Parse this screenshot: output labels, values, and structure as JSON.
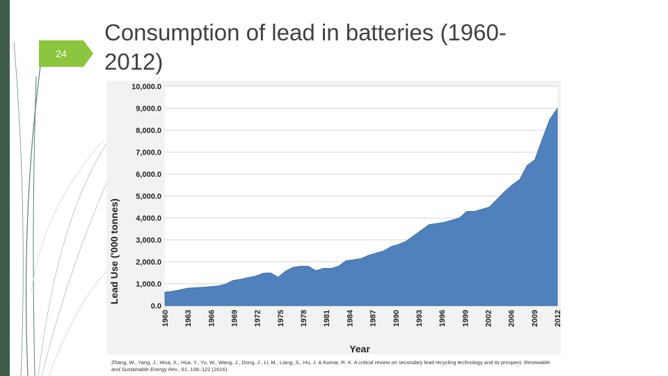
{
  "slide": {
    "number": "24",
    "title": "Consumption of lead in batteries (1960-2012)"
  },
  "citation": {
    "authors": "Zhang, W., Yang, J., Wua, X., Hua, Y., Yu, W., Wang, J., Dong, J., Li, M., Liang, S., Hu, J. & Kumar, R. K. A critical review on secondary lead recycling technology and its prospect.",
    "journal": "Renewable and Sustainable Energy Rev.",
    "details": ", 61, 108–122 (2016)."
  },
  "colors": {
    "area_fill": "#4f81bd",
    "accent_green": "#8cc63e",
    "left_bar": "#3d5c4a"
  },
  "chart_data": {
    "type": "area",
    "title": "",
    "xlabel": "Year",
    "ylabel": "Lead Use ('000 tonnes)",
    "ylim": [
      0,
      10000
    ],
    "y_ticks": [
      "0.0",
      "1,000.0",
      "2,000.0",
      "3,000.0",
      "4,000.0",
      "5,000.0",
      "6,000.0",
      "7,000.0",
      "8,000.0",
      "9,000.0",
      "10,000.0"
    ],
    "x_ticks": [
      "1960",
      "1963",
      "1966",
      "1969",
      "1972",
      "1975",
      "1978",
      "1981",
      "1984",
      "1987",
      "1990",
      "1993",
      "1996",
      "1999",
      "2002",
      "2006",
      "2009",
      "2012"
    ],
    "grid": true,
    "x": [
      1960,
      1961,
      1962,
      1963,
      1964,
      1965,
      1966,
      1967,
      1968,
      1969,
      1970,
      1971,
      1972,
      1973,
      1974,
      1975,
      1976,
      1977,
      1978,
      1979,
      1980,
      1981,
      1982,
      1983,
      1984,
      1985,
      1986,
      1987,
      1988,
      1989,
      1990,
      1991,
      1992,
      1993,
      1994,
      1995,
      1996,
      1997,
      1998,
      1999,
      2000,
      2001,
      2002,
      2003,
      2005,
      2006,
      2007,
      2008,
      2009,
      2010,
      2011,
      2012
    ],
    "values": [
      620,
      660,
      720,
      800,
      820,
      840,
      870,
      900,
      980,
      1150,
      1200,
      1280,
      1350,
      1480,
      1500,
      1300,
      1580,
      1750,
      1800,
      1800,
      1600,
      1700,
      1700,
      1800,
      2050,
      2100,
      2150,
      2300,
      2400,
      2500,
      2700,
      2800,
      2950,
      3200,
      3450,
      3700,
      3750,
      3800,
      3900,
      4000,
      4300,
      4300,
      4400,
      4500,
      5200,
      5500,
      5750,
      6400,
      6650,
      7600,
      8500,
      9000
    ]
  }
}
